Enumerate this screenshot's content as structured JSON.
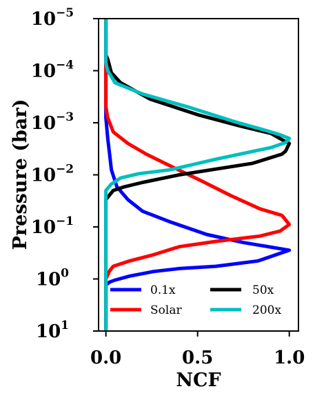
{
  "chart_data": {
    "type": "line",
    "title": "",
    "xlabel": "NCF",
    "ylabel": "Pressure (bar)",
    "xlim": [
      -0.04,
      1.05
    ],
    "ylim": [
      10,
      1e-05
    ],
    "yscale": "log",
    "y_inverted": true,
    "grid": false,
    "legend": {
      "placement": "lower-center",
      "columns": 2
    },
    "x_ticks": [
      {
        "value": 0.0,
        "label": "0.0"
      },
      {
        "value": 0.5,
        "label": "0.5"
      },
      {
        "value": 1.0,
        "label": "1.0"
      }
    ],
    "y_ticks": [
      {
        "value": 1e-05,
        "base": "10",
        "exp": "−5"
      },
      {
        "value": 0.0001,
        "base": "10",
        "exp": "−4"
      },
      {
        "value": 0.001,
        "base": "10",
        "exp": "−3"
      },
      {
        "value": 0.01,
        "base": "10",
        "exp": "−2"
      },
      {
        "value": 0.1,
        "base": "10",
        "exp": "−1"
      },
      {
        "value": 1,
        "base": "10",
        "exp": "0"
      },
      {
        "value": 10,
        "base": "10",
        "exp": "1"
      }
    ],
    "series": [
      {
        "name": "0.1x",
        "color": "#0000ff",
        "points": [
          [
            0.0,
            1e-05
          ],
          [
            0.0,
            0.0004
          ],
          [
            0.0,
            0.0008
          ],
          [
            0.01,
            0.002
          ],
          [
            0.02,
            0.004
          ],
          [
            0.03,
            0.008
          ],
          [
            0.06,
            0.017
          ],
          [
            0.12,
            0.03
          ],
          [
            0.2,
            0.05
          ],
          [
            0.35,
            0.08
          ],
          [
            0.55,
            0.14
          ],
          [
            0.75,
            0.2
          ],
          [
            1.0,
            0.28
          ],
          [
            0.83,
            0.45
          ],
          [
            0.6,
            0.57
          ],
          [
            0.4,
            0.63
          ],
          [
            0.26,
            0.72
          ],
          [
            0.13,
            0.88
          ],
          [
            0.05,
            1.05
          ],
          [
            0.02,
            1.15
          ],
          [
            0.0,
            1.3
          ],
          [
            0.0,
            10
          ]
        ]
      },
      {
        "name": "Solar",
        "color": "#ff0000",
        "points": [
          [
            0.0,
            1e-05
          ],
          [
            0.0,
            0.0005
          ],
          [
            0.01,
            0.0008
          ],
          [
            0.04,
            0.0015
          ],
          [
            0.12,
            0.0025
          ],
          [
            0.22,
            0.004
          ],
          [
            0.36,
            0.007
          ],
          [
            0.52,
            0.013
          ],
          [
            0.68,
            0.025
          ],
          [
            0.84,
            0.045
          ],
          [
            0.96,
            0.06
          ],
          [
            1.0,
            0.09
          ],
          [
            0.95,
            0.12
          ],
          [
            0.84,
            0.15
          ],
          [
            0.6,
            0.19
          ],
          [
            0.4,
            0.24
          ],
          [
            0.25,
            0.35
          ],
          [
            0.13,
            0.45
          ],
          [
            0.04,
            0.57
          ],
          [
            0.02,
            0.7
          ],
          [
            0.0,
            1.0
          ],
          [
            0.0,
            10
          ]
        ]
      },
      {
        "name": "50x",
        "color": "#000000",
        "points": [
          [
            0.0,
            1e-05
          ],
          [
            0.0,
            5e-05
          ],
          [
            0.01,
            6e-05
          ],
          [
            0.03,
            0.00011
          ],
          [
            0.08,
            0.00017
          ],
          [
            0.24,
            0.00035
          ],
          [
            0.5,
            0.0007
          ],
          [
            0.73,
            0.00115
          ],
          [
            0.9,
            0.0016
          ],
          [
            0.97,
            0.0022
          ],
          [
            1.0,
            0.0025
          ],
          [
            0.98,
            0.0035
          ],
          [
            0.96,
            0.004
          ],
          [
            0.8,
            0.006
          ],
          [
            0.4,
            0.01
          ],
          [
            0.2,
            0.014
          ],
          [
            0.1,
            0.017
          ],
          [
            0.04,
            0.02
          ],
          [
            0.01,
            0.027
          ],
          [
            0.0,
            0.03
          ],
          [
            0.0,
            10
          ]
        ]
      },
      {
        "name": "200x",
        "color": "#00bfbf",
        "points": [
          [
            0.0,
            1e-05
          ],
          [
            0.0,
            7e-05
          ],
          [
            0.01,
            0.0001
          ],
          [
            0.05,
            0.00017
          ],
          [
            0.2,
            0.00028
          ],
          [
            0.45,
            0.0005
          ],
          [
            0.7,
            0.00095
          ],
          [
            0.87,
            0.0014
          ],
          [
            0.95,
            0.0017
          ],
          [
            1.0,
            0.002
          ],
          [
            0.98,
            0.0024
          ],
          [
            0.9,
            0.003
          ],
          [
            0.6,
            0.005
          ],
          [
            0.35,
            0.008
          ],
          [
            0.18,
            0.0095
          ],
          [
            0.08,
            0.0115
          ],
          [
            0.03,
            0.015
          ],
          [
            0.0,
            0.02
          ],
          [
            0.0,
            10
          ]
        ]
      }
    ]
  }
}
